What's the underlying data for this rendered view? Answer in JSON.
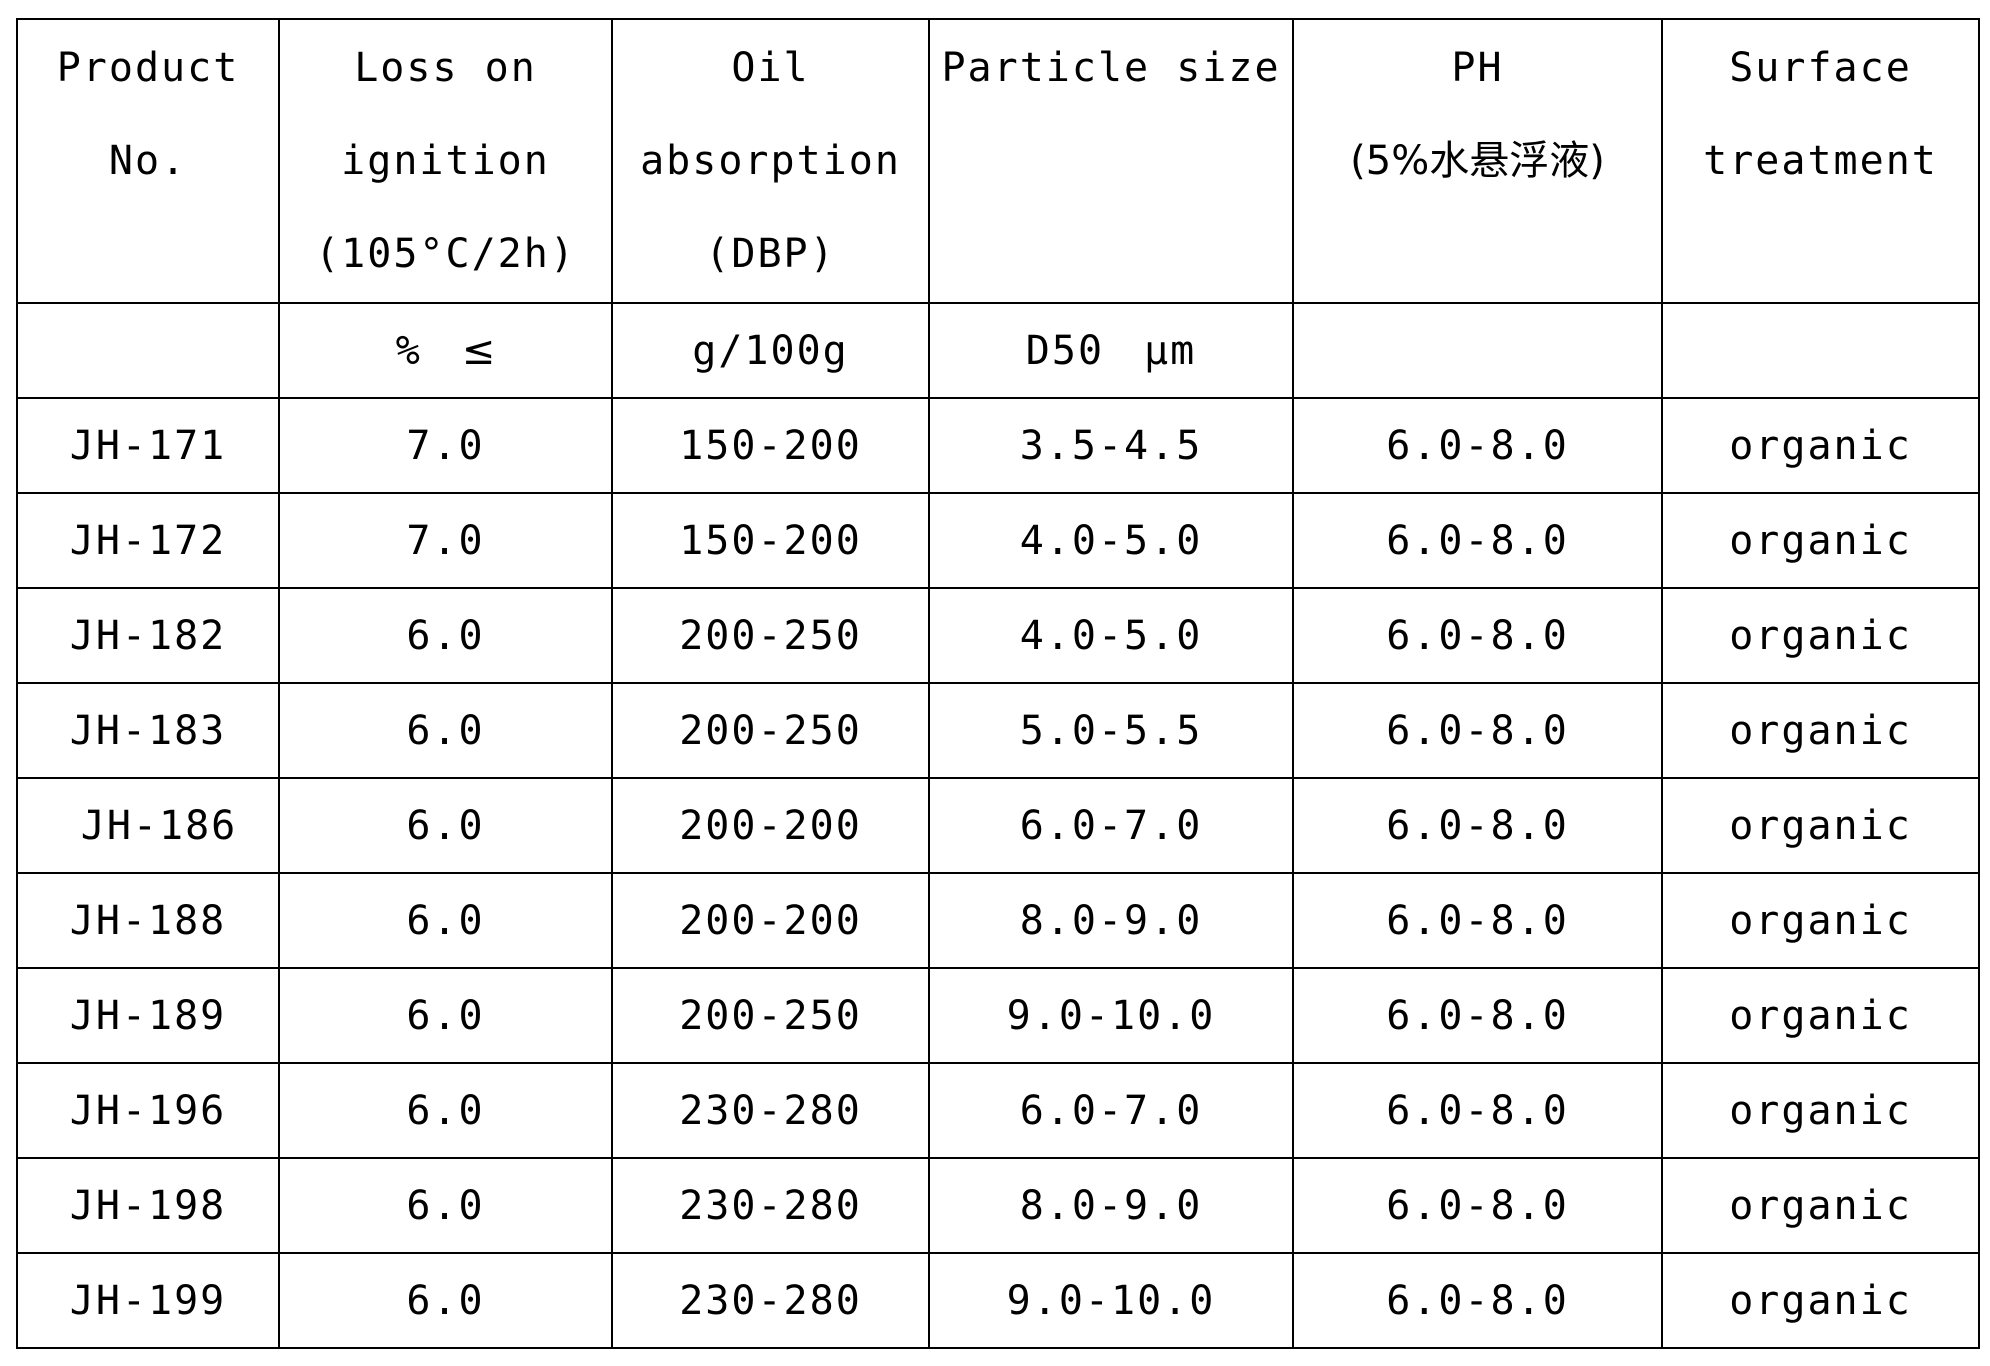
{
  "table": {
    "headers": [
      [
        "Product",
        "No."
      ],
      [
        "Loss on",
        "ignition",
        "(105°C/2h)"
      ],
      [
        "Oil",
        "absorption",
        "(DBP)"
      ],
      [
        "Particle size"
      ],
      [
        "PH",
        "(5%水悬浮液)"
      ],
      [
        "Surface",
        "treatment"
      ]
    ],
    "units": [
      "",
      [
        "%",
        "≤"
      ],
      "g/100g",
      [
        "D50",
        "μm"
      ],
      "",
      ""
    ],
    "rows": [
      [
        "JH-171",
        "7.0",
        "150-200",
        "3.5-4.5",
        "6.0-8.0",
        "organic"
      ],
      [
        "JH-172",
        "7.0",
        "150-200",
        "4.0-5.0",
        "6.0-8.0",
        "organic"
      ],
      [
        "JH-182",
        "6.0",
        "200-250",
        "4.0-5.0",
        "6.0-8.0",
        "organic"
      ],
      [
        "JH-183",
        "6.0",
        "200-250",
        "5.0-5.5",
        "6.0-8.0",
        "organic"
      ],
      [
        "JH-186",
        "6.0",
        "200-200",
        "6.0-7.0",
        "6.0-8.0",
        "organic"
      ],
      [
        "JH-188",
        "6.0",
        "200-200",
        "8.0-9.0",
        "6.0-8.0",
        "organic"
      ],
      [
        "JH-189",
        "6.0",
        "200-250",
        "9.0-10.0",
        "6.0-8.0",
        "organic"
      ],
      [
        "JH-196",
        "6.0",
        "230-280",
        "6.0-7.0",
        "6.0-8.0",
        "organic"
      ],
      [
        "JH-198",
        "6.0",
        "230-280",
        "8.0-9.0",
        "6.0-8.0",
        "organic"
      ],
      [
        "JH-199",
        "6.0",
        "230-280",
        "9.0-10.0",
        "6.0-8.0",
        "organic"
      ]
    ]
  }
}
